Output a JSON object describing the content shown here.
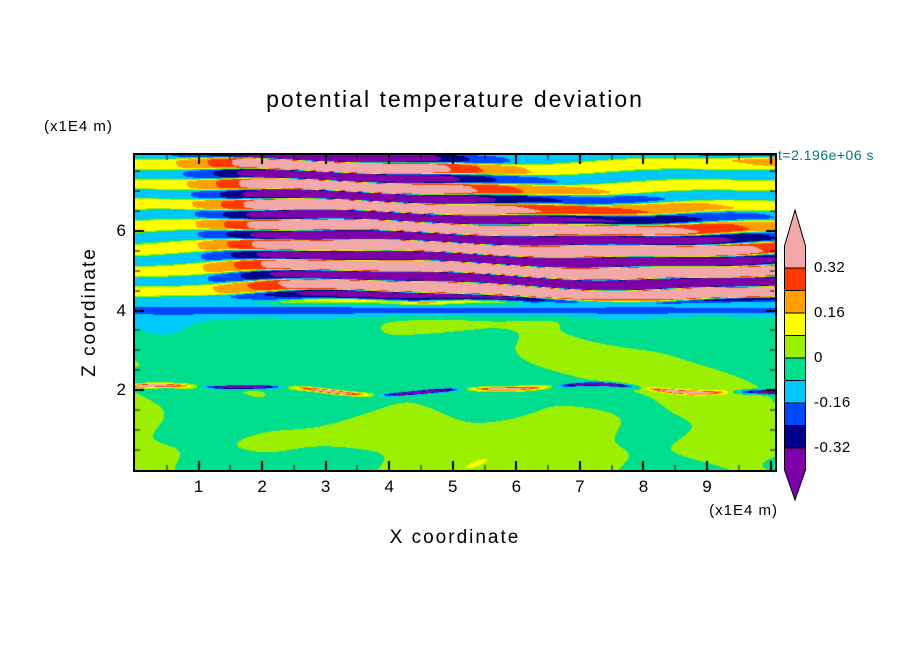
{
  "chart_data": {
    "type": "heatmap",
    "title": "potential temperature deviation",
    "timestamp": "t=2.196e+06 s",
    "timestamp_color": "#007878",
    "x_axis": {
      "label": "X coordinate",
      "units": "(x1E4 m)",
      "tick_labels": [
        "1",
        "2",
        "3",
        "4",
        "5",
        "6",
        "7",
        "8",
        "9"
      ],
      "tick_values": [
        1,
        2,
        3,
        4,
        5,
        6,
        7,
        8,
        9
      ],
      "range": [
        0,
        10.07
      ]
    },
    "y_axis": {
      "label": "Z coordinate",
      "units": "(x1E4 m)",
      "tick_labels": [
        "2",
        "4",
        "6"
      ],
      "tick_values": [
        2,
        4,
        6
      ],
      "range": [
        0,
        7.9
      ]
    },
    "colorbar": {
      "boundaries": [
        -0.32,
        -0.24,
        -0.16,
        -0.08,
        0,
        0.08,
        0.16,
        0.24,
        0.32
      ],
      "band_colors": [
        "#00008B",
        "#0048FF",
        "#00C8FF",
        "#00DE8E",
        "#9AF000",
        "#FFFF00",
        "#FFA000",
        "#FF3800"
      ],
      "under_arrow_color": "#7D00A8",
      "over_arrow_color": "#F2A8A8",
      "tick_labels": [
        "0.32",
        "0.16",
        "0",
        "-0.16",
        "-0.32"
      ],
      "tick_values": [
        0.32,
        0.16,
        0,
        -0.16,
        -0.32
      ]
    },
    "field": {
      "description": "2-D x-z cross-section of potential temperature deviation: strong alternating positive/negative (pink/purple, |dev|>0.32) gravity-wave layers above z~4x1E4 m, a thin negative (cyan, ~-0.16) band near z~4, weak deviations (-0.08..0.08, green/chartreuse) below with thin mixed filaments near z~2",
      "positive_extreme_color": "#F2A8A8",
      "negative_extreme_color": "#7D00A8"
    }
  }
}
